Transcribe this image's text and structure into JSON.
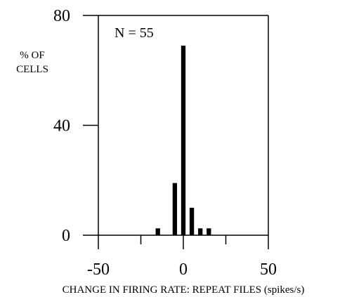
{
  "chart_data": {
    "type": "bar",
    "annotation": "N = 55",
    "ylabel_lines": [
      "% OF",
      "CELLS"
    ],
    "xlabel": "CHANGE IN FIRING RATE: REPEAT FILES (spikes/s)",
    "xlim": [
      -50,
      50
    ],
    "ylim": [
      0,
      80
    ],
    "xticks": [
      "-50",
      "0",
      "50"
    ],
    "yticks": [
      "0",
      "40",
      "80"
    ],
    "x_minor_ticks": [
      -25,
      25
    ],
    "bar_width": 2.6,
    "x": [
      -15,
      -5,
      0,
      5,
      10,
      15
    ],
    "values": [
      2.5,
      19,
      69,
      10,
      2.5,
      2.5
    ],
    "grid": false,
    "colors": {
      "bars": "#000000",
      "axes": "#000000"
    }
  }
}
